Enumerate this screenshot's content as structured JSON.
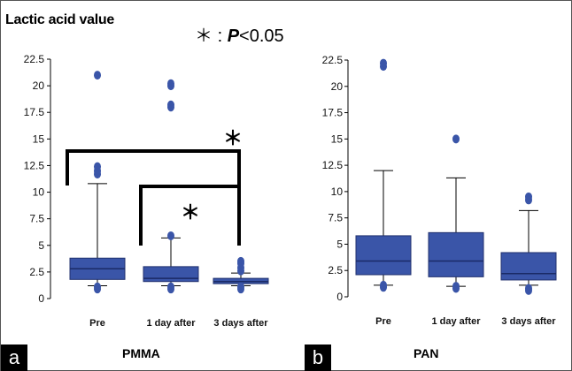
{
  "page_title": "Lactic acid value",
  "significance_note": {
    "star": "＊",
    "colon": ":",
    "p_symbol": "P",
    "threshold": "<0.05"
  },
  "panels": [
    {
      "letter": "a",
      "name": "PMMA"
    },
    {
      "letter": "b",
      "name": "PAN"
    }
  ],
  "colors": {
    "box": "#3a55a8",
    "outlier": "#3a55a8",
    "bracket": "#000000",
    "median": "#1a2a66"
  },
  "chart_data": [
    {
      "type": "box",
      "title": "PMMA",
      "panel": "a",
      "y_ticks": [
        "0",
        "2.5",
        "5",
        "7.5",
        "10",
        "12.5",
        "15",
        "17.5",
        "20",
        "22.5"
      ],
      "ylim": [
        0,
        22.5
      ],
      "categories": [
        "Pre",
        "1 day after",
        "3 days after"
      ],
      "boxes": [
        {
          "category": "Pre",
          "whisker_low": 1.2,
          "q1": 1.8,
          "median": 2.8,
          "q3": 3.8,
          "whisker_high": 10.8,
          "outliers": [
            0.9,
            1.1,
            11.7,
            12.0,
            12.4,
            21.0
          ]
        },
        {
          "category": "1 day after",
          "whisker_low": 1.2,
          "q1": 1.6,
          "median": 1.9,
          "q3": 3.0,
          "whisker_high": 5.7,
          "outliers": [
            0.9,
            1.1,
            5.9,
            18.0,
            18.2,
            20.0,
            20.2
          ]
        },
        {
          "category": "3 days after",
          "whisker_low": 1.2,
          "q1": 1.4,
          "median": 1.6,
          "q3": 1.9,
          "whisker_high": 2.4,
          "outliers": [
            0.9,
            1.1,
            2.6,
            2.9,
            3.3,
            3.5
          ]
        }
      ],
      "significance_brackets": [
        {
          "from": "Pre",
          "to": "3 days after",
          "label": "＊"
        },
        {
          "from": "1 day after",
          "to": "3 days after",
          "label": "＊"
        }
      ]
    },
    {
      "type": "box",
      "title": "PAN",
      "panel": "b",
      "y_ticks": [
        "0",
        "2.5",
        "5",
        "7.5",
        "10",
        "12.5",
        "15",
        "17.5",
        "20",
        "22.5"
      ],
      "ylim": [
        0,
        22.5
      ],
      "categories": [
        "Pre",
        "1 day after",
        "3 days after"
      ],
      "boxes": [
        {
          "category": "Pre",
          "whisker_low": 1.1,
          "q1": 2.1,
          "median": 3.4,
          "q3": 5.8,
          "whisker_high": 12.0,
          "outliers": [
            0.9,
            1.1,
            21.9,
            22.2
          ]
        },
        {
          "category": "1 day after",
          "whisker_low": 1.0,
          "q1": 1.9,
          "median": 3.4,
          "q3": 6.1,
          "whisker_high": 11.3,
          "outliers": [
            0.8,
            1.0,
            15.0
          ]
        },
        {
          "category": "3 days after",
          "whisker_low": 1.1,
          "q1": 1.6,
          "median": 2.2,
          "q3": 4.2,
          "whisker_high": 8.2,
          "outliers": [
            0.6,
            0.8,
            9.2,
            9.5
          ]
        }
      ],
      "significance_brackets": []
    }
  ]
}
